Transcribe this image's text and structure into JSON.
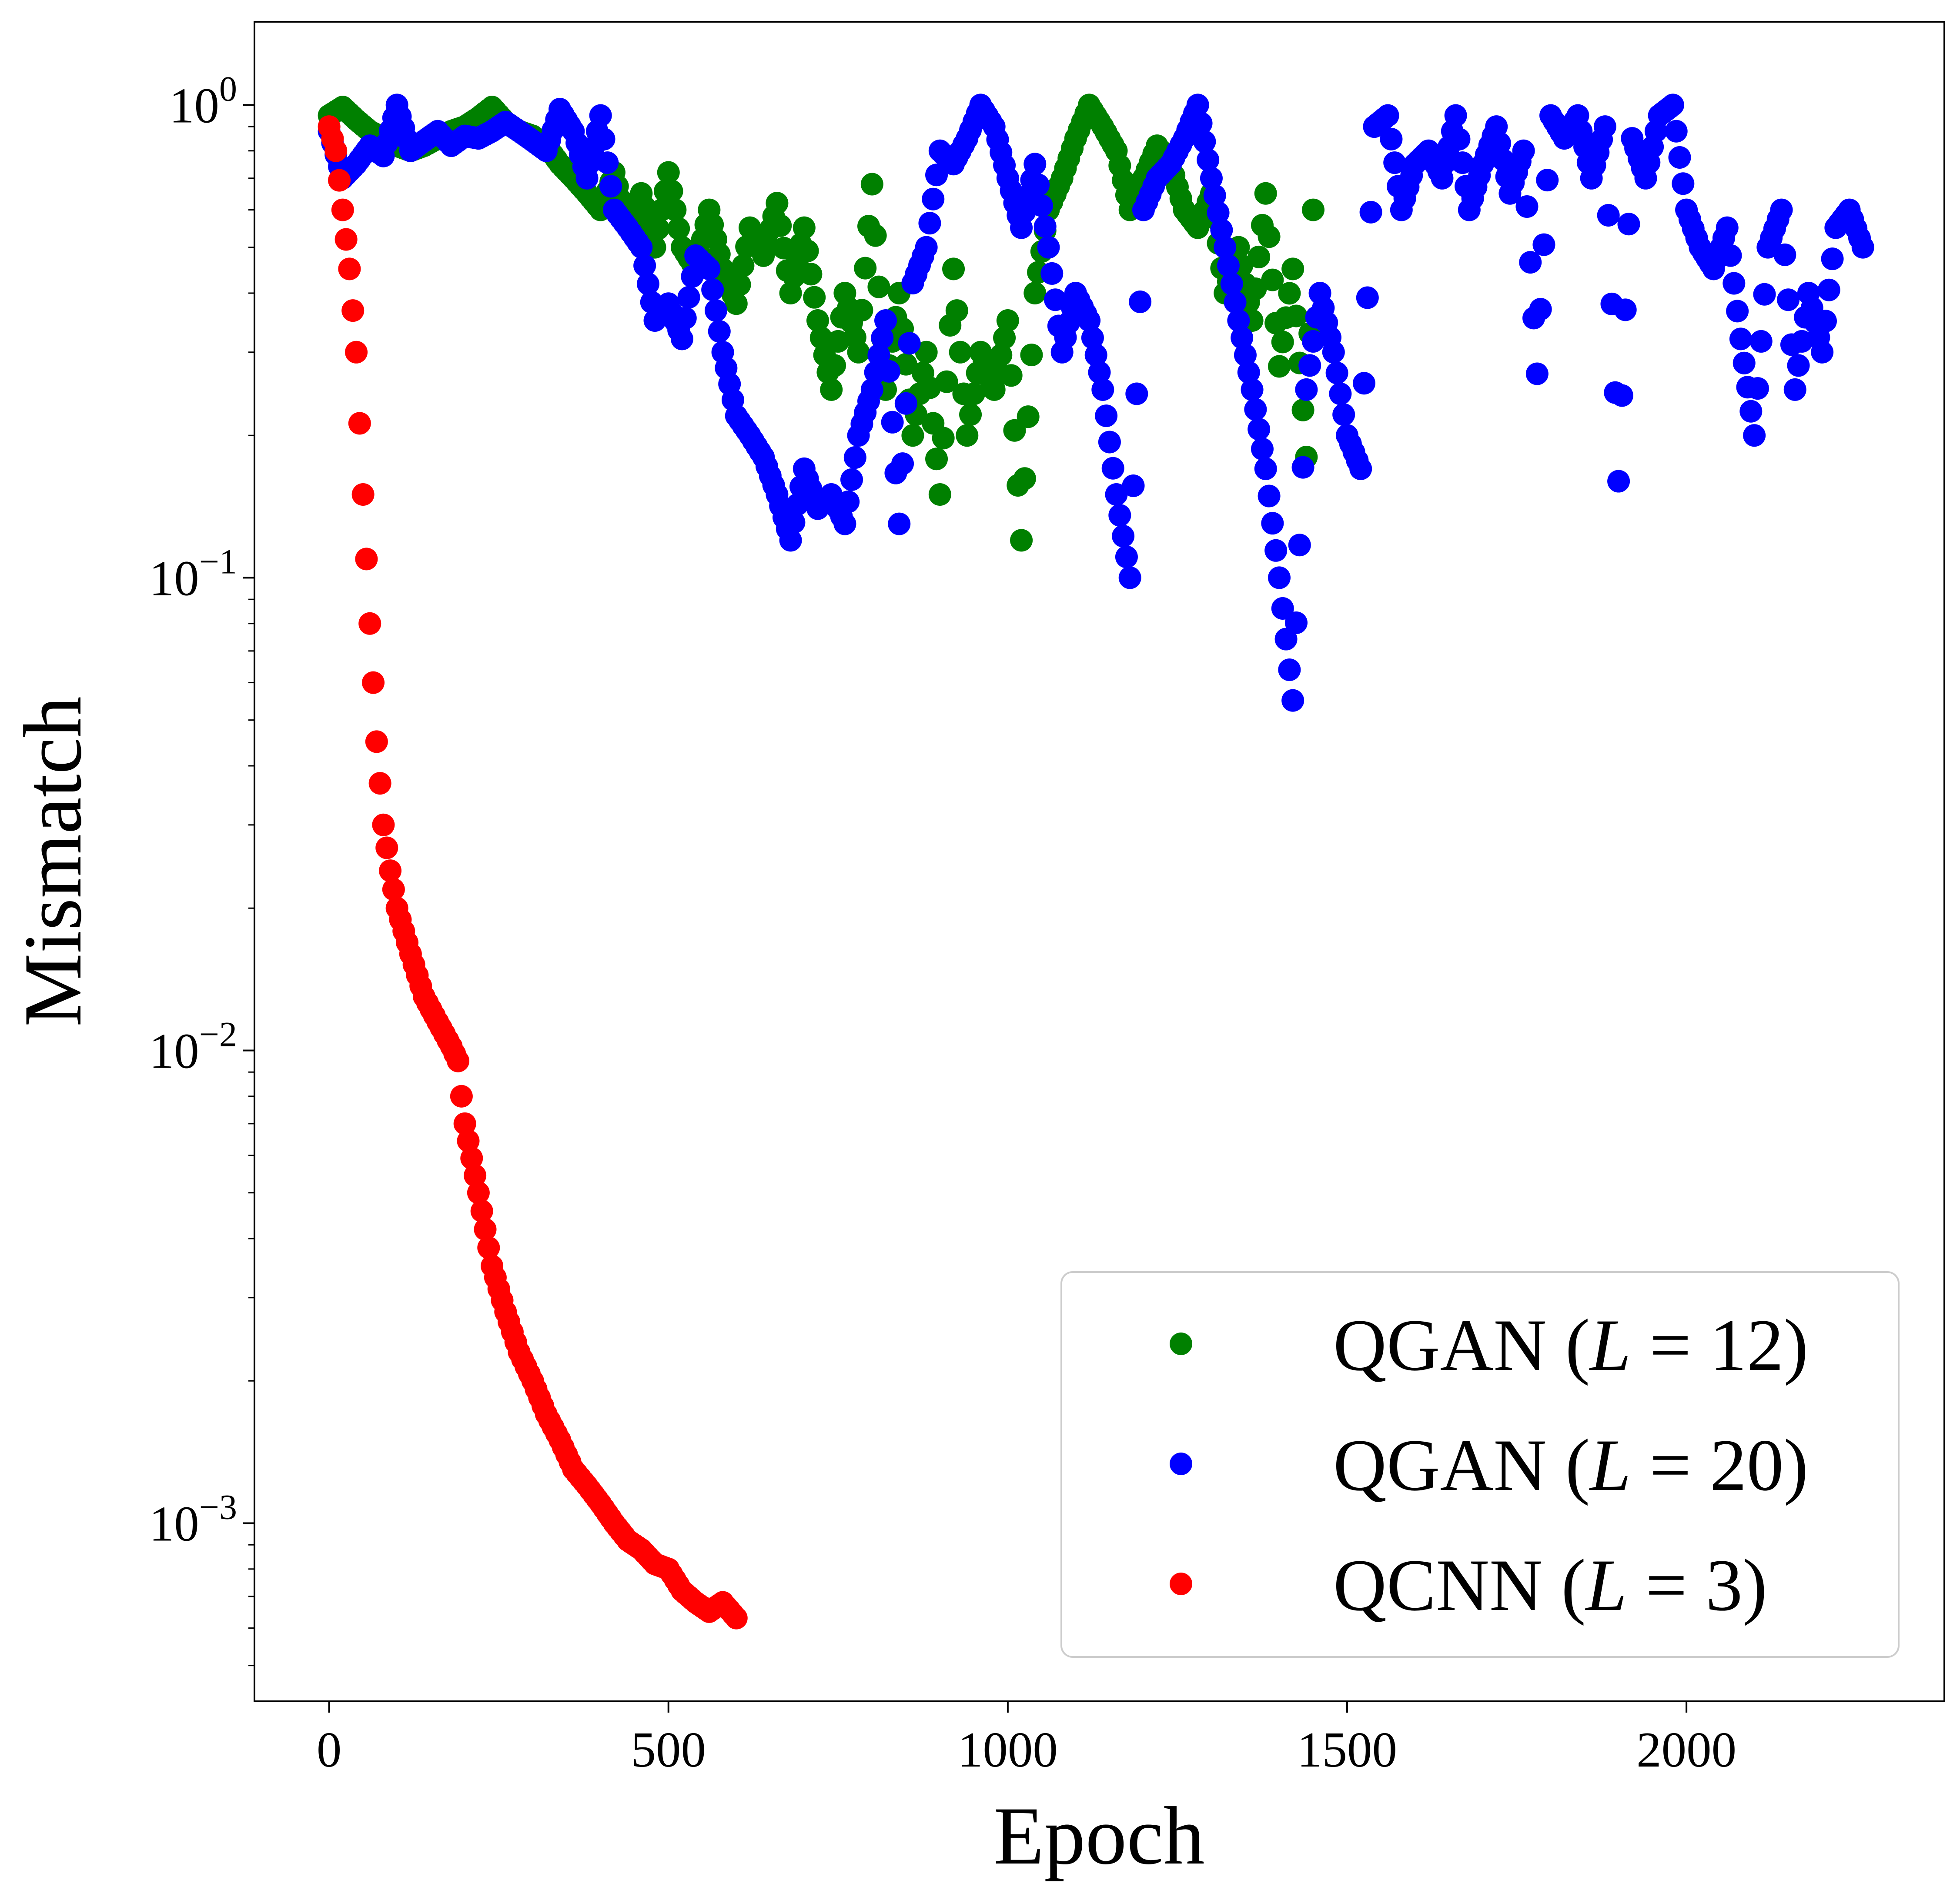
{
  "chart_data": {
    "type": "scatter",
    "title": "",
    "xlabel": "Epoch",
    "ylabel": "Mismatch",
    "xlim": [
      -110,
      2380
    ],
    "ylim": [
      0.00042,
      1.5
    ],
    "yscale": "log",
    "grid": false,
    "legend_position": "lower-right",
    "x_ticks": [
      0,
      500,
      1000,
      1500,
      2000
    ],
    "x_tick_labels": [
      "0",
      "500",
      "1000",
      "1500",
      "2000"
    ],
    "y_ticks": [
      {
        "value": 1,
        "base": "10",
        "exp": "0"
      },
      {
        "value": 0.1,
        "base": "10",
        "exp": "−1"
      },
      {
        "value": 0.01,
        "base": "10",
        "exp": "−2"
      },
      {
        "value": 0.001,
        "base": "10",
        "exp": "−3"
      }
    ],
    "series": [
      {
        "name": "QGAN (L = 12)",
        "legend": {
          "prefix": "QGAN (",
          "var": "L",
          "eq": " = ",
          "value": "12",
          "suffix": ")"
        },
        "color": "#008000",
        "x": [
          0,
          20,
          40,
          60,
          80,
          100,
          120,
          140,
          160,
          180,
          200,
          220,
          240,
          260,
          280,
          300,
          320,
          340,
          360,
          380,
          400,
          420,
          440,
          460,
          480,
          500,
          520,
          540,
          560,
          580,
          600,
          620,
          640,
          660,
          680,
          700,
          720,
          740,
          760,
          780,
          800,
          820,
          840,
          860,
          880,
          900,
          920,
          940,
          960,
          980,
          1000,
          1020,
          1040,
          1060,
          1080,
          1100,
          1120,
          1140,
          1160,
          1180,
          1200,
          1220,
          1240,
          1260,
          1280,
          1300,
          1320,
          1340,
          1360,
          1380,
          1400,
          1420,
          1440,
          1450
        ],
        "y": [
          0.95,
          0.99,
          0.93,
          0.88,
          0.85,
          0.82,
          0.8,
          0.82,
          0.85,
          0.88,
          0.9,
          0.94,
          0.99,
          0.92,
          0.88,
          0.86,
          0.82,
          0.75,
          0.7,
          0.65,
          0.6,
          0.72,
          0.55,
          0.65,
          0.5,
          0.72,
          0.5,
          0.45,
          0.6,
          0.45,
          0.38,
          0.55,
          0.48,
          0.62,
          0.4,
          0.55,
          0.35,
          0.25,
          0.4,
          0.3,
          0.68,
          0.25,
          0.4,
          0.2,
          0.3,
          0.15,
          0.45,
          0.2,
          0.3,
          0.25,
          0.35,
          0.12,
          0.4,
          0.6,
          0.7,
          0.85,
          1.0,
          0.9,
          0.8,
          0.6,
          0.7,
          0.82,
          0.75,
          0.6,
          0.55,
          0.65,
          0.4,
          0.5,
          0.35,
          0.65,
          0.28,
          0.45,
          0.18,
          0.6
        ]
      },
      {
        "name": "QGAN (L = 20)",
        "legend": {
          "prefix": "QGAN (",
          "var": "L",
          "eq": " = ",
          "value": "20",
          "suffix": ")"
        },
        "color": "#0000ff",
        "x": [
          0,
          20,
          40,
          60,
          80,
          100,
          120,
          140,
          160,
          180,
          200,
          220,
          240,
          260,
          280,
          300,
          320,
          340,
          360,
          380,
          400,
          420,
          440,
          460,
          480,
          500,
          520,
          540,
          560,
          580,
          600,
          620,
          640,
          660,
          680,
          700,
          720,
          740,
          760,
          780,
          800,
          820,
          840,
          860,
          880,
          900,
          920,
          940,
          960,
          980,
          1000,
          1020,
          1040,
          1060,
          1080,
          1100,
          1120,
          1140,
          1160,
          1180,
          1200,
          1220,
          1240,
          1260,
          1280,
          1300,
          1320,
          1340,
          1360,
          1380,
          1400,
          1420,
          1440,
          1460,
          1480,
          1500,
          1520,
          1540,
          1560,
          1580,
          1600,
          1620,
          1640,
          1660,
          1680,
          1700,
          1720,
          1740,
          1760,
          1780,
          1800,
          1820,
          1840,
          1860,
          1880,
          1900,
          1920,
          1940,
          1960,
          1980,
          2000,
          2020,
          2040,
          2060,
          2080,
          2100,
          2120,
          2140,
          2160,
          2180,
          2200,
          2220,
          2240,
          2260
        ],
        "y": [
          0.88,
          0.7,
          0.75,
          0.82,
          0.78,
          1.0,
          0.8,
          0.84,
          0.88,
          0.82,
          0.86,
          0.85,
          0.88,
          0.92,
          0.88,
          0.84,
          0.8,
          0.98,
          0.88,
          0.7,
          0.95,
          0.6,
          0.55,
          0.5,
          0.35,
          0.38,
          0.32,
          0.48,
          0.45,
          0.3,
          0.22,
          0.2,
          0.18,
          0.15,
          0.12,
          0.17,
          0.14,
          0.15,
          0.13,
          0.2,
          0.25,
          0.35,
          0.13,
          0.42,
          0.5,
          0.8,
          0.75,
          0.85,
          1.0,
          0.9,
          0.7,
          0.55,
          0.75,
          0.5,
          0.3,
          0.4,
          0.35,
          0.25,
          0.15,
          0.1,
          0.6,
          0.7,
          0.75,
          0.85,
          1.0,
          0.7,
          0.5,
          0.35,
          0.25,
          0.17,
          0.1,
          0.055,
          0.25,
          0.4,
          0.3,
          0.2,
          0.17,
          0.9,
          0.95,
          0.6,
          0.75,
          0.8,
          0.7,
          0.95,
          0.6,
          0.75,
          0.9,
          0.65,
          0.8,
          0.27,
          0.95,
          0.85,
          0.95,
          0.7,
          0.9,
          0.16,
          0.85,
          0.7,
          0.95,
          1.0,
          0.6,
          0.5,
          0.45,
          0.55,
          0.32,
          0.2,
          0.5,
          0.6,
          0.25,
          0.4,
          0.3,
          0.55,
          0.6,
          0.5
        ]
      },
      {
        "name": "QCNN (L = 3)",
        "legend": {
          "prefix": "QCNN (",
          "var": "L",
          "eq": " = ",
          "value": "3",
          "suffix": ")"
        },
        "color": "#ff0000",
        "x": [
          0,
          10,
          20,
          30,
          40,
          50,
          60,
          70,
          80,
          90,
          100,
          120,
          140,
          160,
          180,
          190,
          195,
          200,
          220,
          240,
          260,
          280,
          300,
          320,
          340,
          360,
          380,
          400,
          420,
          440,
          460,
          480,
          500,
          520,
          540,
          560,
          580,
          600
        ],
        "y": [
          0.9,
          0.8,
          0.6,
          0.45,
          0.3,
          0.15,
          0.08,
          0.045,
          0.03,
          0.024,
          0.02,
          0.016,
          0.013,
          0.0115,
          0.0102,
          0.0095,
          0.008,
          0.007,
          0.005,
          0.0035,
          0.0028,
          0.0023,
          0.002,
          0.0017,
          0.0015,
          0.0013,
          0.0012,
          0.0011,
          0.001,
          0.00092,
          0.00088,
          0.00082,
          0.0008,
          0.00072,
          0.00068,
          0.00065,
          0.00068,
          0.00063
        ]
      }
    ]
  }
}
